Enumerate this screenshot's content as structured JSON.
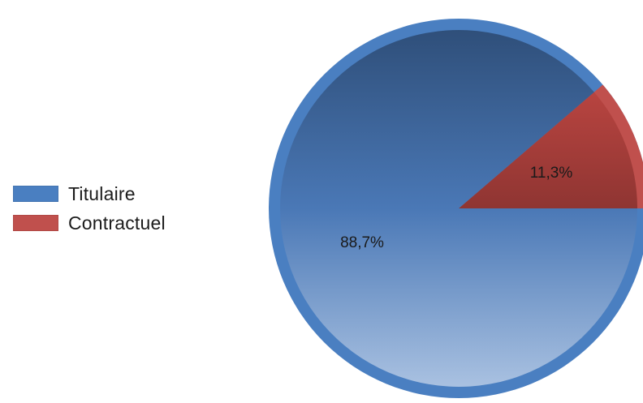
{
  "chart_data": {
    "type": "pie",
    "categories": [
      "Titulaire",
      "Contractuel"
    ],
    "values": [
      88.7,
      11.3
    ],
    "labels": [
      "88,7%",
      "11,3%"
    ],
    "colors": [
      "#4a7fc1",
      "#c0504d"
    ],
    "legend_position": "left",
    "start_angle_deg": 0,
    "direction": "counterclockwise"
  },
  "legend": {
    "items": [
      {
        "label": "Titulaire",
        "color": "#4a7fc1"
      },
      {
        "label": "Contractuel",
        "color": "#c0504d"
      }
    ]
  }
}
